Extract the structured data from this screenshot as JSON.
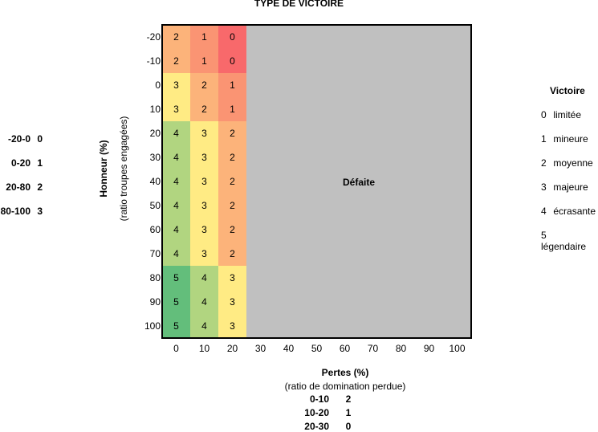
{
  "title": "TYPE DE VICTOIRE",
  "colors": {
    "score_5": "#63be7b",
    "score_4": "#b1d580",
    "score_3": "#ffeb84",
    "score_2": "#fcb37a",
    "score_1": "#fa9473",
    "score_0": "#f8696b",
    "defeat": "#c0c0c0",
    "border": "#000000"
  },
  "chart_data": {
    "type": "heatmap",
    "title": "TYPE DE VICTOIRE",
    "x_label": "Pertes (%)",
    "x_sublabel": "(ratio de domination perdue)",
    "y_label": "Honneur (%)",
    "y_sublabel": "(ratio troupes engagées)",
    "x_ticks": [
      "0",
      "10",
      "20",
      "30",
      "40",
      "50",
      "60",
      "70",
      "80",
      "90",
      "100"
    ],
    "y_ticks": [
      "-20",
      "-10",
      "0",
      "10",
      "20",
      "30",
      "40",
      "50",
      "60",
      "70",
      "80",
      "90",
      "100"
    ],
    "values": [
      [
        2,
        1,
        0
      ],
      [
        2,
        1,
        0
      ],
      [
        3,
        2,
        1
      ],
      [
        3,
        2,
        1
      ],
      [
        4,
        3,
        2
      ],
      [
        4,
        3,
        2
      ],
      [
        4,
        3,
        2
      ],
      [
        4,
        3,
        2
      ],
      [
        4,
        3,
        2
      ],
      [
        4,
        3,
        2
      ],
      [
        5,
        4,
        3
      ],
      [
        5,
        4,
        3
      ],
      [
        5,
        4,
        3
      ]
    ],
    "filled_columns": 3,
    "region_label": "Défaite",
    "grid": false
  },
  "legend": {
    "title": "Victoire",
    "items": [
      {
        "key": "0",
        "label": "limitée"
      },
      {
        "key": "1",
        "label": "mineure"
      },
      {
        "key": "2",
        "label": "moyenne"
      },
      {
        "key": "3",
        "label": "majeure"
      },
      {
        "key": "4",
        "label": "écrasante"
      },
      {
        "key": "5",
        "label": "légendaire"
      }
    ]
  },
  "honor_table": [
    {
      "range": "-20-0",
      "value": "0"
    },
    {
      "range": "0-20",
      "value": "1"
    },
    {
      "range": "20-80",
      "value": "2"
    },
    {
      "range": "80-100",
      "value": "3"
    }
  ],
  "losses_table": [
    {
      "range": "0-10",
      "value": "2"
    },
    {
      "range": "10-20",
      "value": "1"
    },
    {
      "range": "20-30",
      "value": "0"
    }
  ]
}
